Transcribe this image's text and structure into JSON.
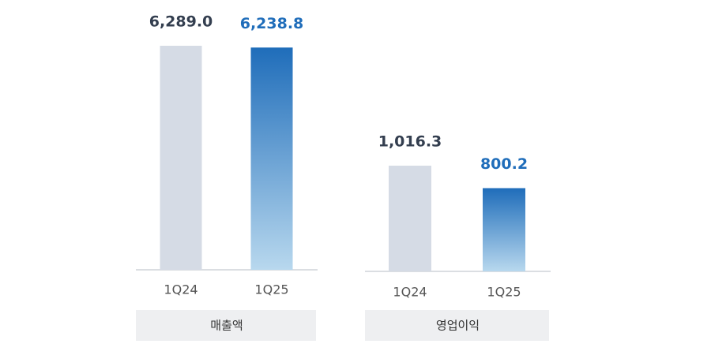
{
  "chart_data": [
    {
      "type": "bar",
      "label": "매출액",
      "categories": [
        "1Q24",
        "1Q25"
      ],
      "values": [
        6289.0,
        6238.8
      ],
      "value_labels": [
        "6,289.0",
        "6,238.8"
      ],
      "colors": [
        "#d5dbe5",
        "#1f6dba"
      ],
      "label_colors": [
        "#333e4f",
        "#1f6dba"
      ]
    },
    {
      "type": "bar",
      "label": "영업이익",
      "categories": [
        "1Q24",
        "1Q25"
      ],
      "values": [
        1016.3,
        800.2
      ],
      "value_labels": [
        "1,016.3",
        "800.2"
      ],
      "colors": [
        "#d5dbe5",
        "#1f6dba"
      ],
      "label_colors": [
        "#333e4f",
        "#1f6dba"
      ]
    }
  ]
}
